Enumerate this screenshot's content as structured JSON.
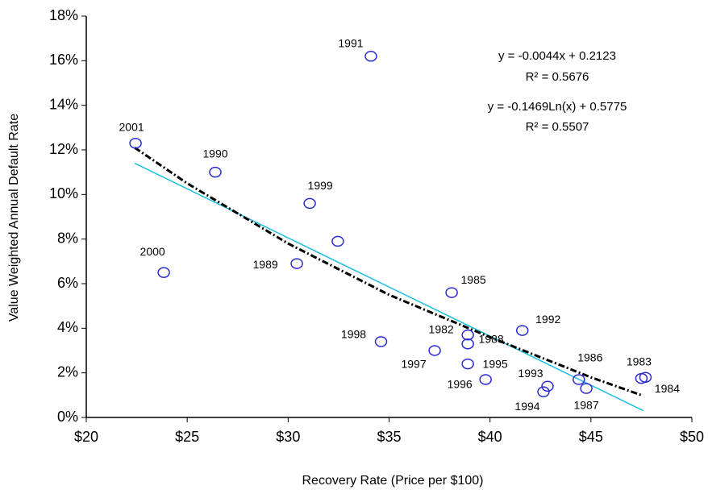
{
  "chart_data": {
    "type": "scatter",
    "x_label": "Recovery Rate (Price per $100)",
    "y_label": "Value Weighted Annual Default Rate",
    "xlim": [
      20,
      50
    ],
    "ylim": [
      0,
      18
    ],
    "xticks": [
      {
        "value": 20,
        "label": "$20"
      },
      {
        "value": 25,
        "label": "$25"
      },
      {
        "value": 30,
        "label": "$30"
      },
      {
        "value": 35,
        "label": "$35"
      },
      {
        "value": 40,
        "label": "$40"
      },
      {
        "value": 45,
        "label": "$45"
      },
      {
        "value": 50,
        "label": "$50"
      }
    ],
    "yticks": [
      {
        "value": 0,
        "label": "0%"
      },
      {
        "value": 2,
        "label": "2%"
      },
      {
        "value": 4,
        "label": "4%"
      },
      {
        "value": 6,
        "label": "6%"
      },
      {
        "value": 8,
        "label": "8%"
      },
      {
        "value": 10,
        "label": "10%"
      },
      {
        "value": 12,
        "label": "12%"
      },
      {
        "value": 14,
        "label": "14%"
      },
      {
        "value": 16,
        "label": "16%"
      },
      {
        "value": 18,
        "label": "18%"
      }
    ],
    "grid": false,
    "color": "#2a2ad0",
    "x": [
      22.44,
      26.39,
      34.1,
      31.07,
      23.84,
      30.43,
      32.46,
      34.6,
      38.1,
      37.26,
      38.9,
      38.9,
      38.9,
      39.78,
      41.6,
      42.85,
      42.65,
      44.4,
      44.77,
      47.5,
      47.7
    ],
    "values": [
      12.3,
      11.0,
      16.2,
      9.6,
      6.5,
      6.9,
      7.9,
      3.4,
      5.6,
      3.0,
      3.7,
      3.3,
      2.4,
      1.7,
      3.9,
      1.4,
      1.15,
      1.7,
      1.3,
      1.75,
      1.8
    ],
    "point_labels": [
      "2001",
      "1990",
      "1991",
      "1999",
      "2000",
      "1989",
      null,
      "1998",
      "1985",
      "1997",
      "1982",
      "1988",
      "1995",
      "1996",
      "1992",
      "1993",
      "1994",
      "1986",
      "1987",
      "1983",
      "1984"
    ],
    "trendlines": [
      {
        "color": "#19c0e0",
        "style": "solid",
        "x": [
          22.4,
          47.6
        ],
        "values": [
          11.4,
          0.3
        ]
      },
      {
        "color": "#000000",
        "style": "dashdot",
        "x": [
          22.4,
          25,
          30,
          35,
          40,
          45,
          47.5
        ],
        "values": [
          12.1,
          10.5,
          7.8,
          5.5,
          3.6,
          1.8,
          1.0
        ]
      }
    ],
    "annotations": [
      "y = -0.0044x + 0.2123",
      "R² = 0.5676",
      "y = -0.1469Ln(x) + 0.5775",
      "R² = 0.5507"
    ]
  }
}
